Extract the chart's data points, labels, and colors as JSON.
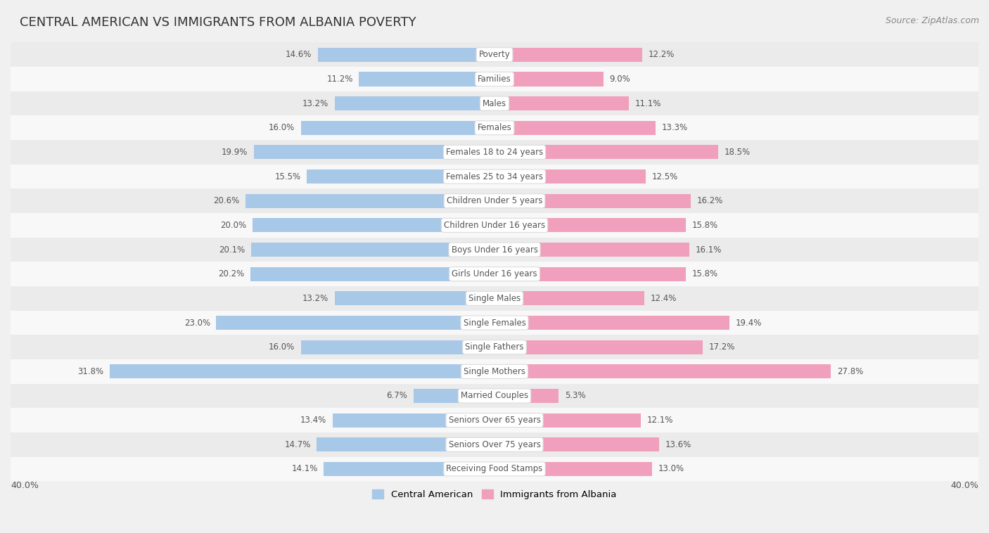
{
  "title": "CENTRAL AMERICAN VS IMMIGRANTS FROM ALBANIA POVERTY",
  "source": "Source: ZipAtlas.com",
  "categories": [
    "Poverty",
    "Families",
    "Males",
    "Females",
    "Females 18 to 24 years",
    "Females 25 to 34 years",
    "Children Under 5 years",
    "Children Under 16 years",
    "Boys Under 16 years",
    "Girls Under 16 years",
    "Single Males",
    "Single Females",
    "Single Fathers",
    "Single Mothers",
    "Married Couples",
    "Seniors Over 65 years",
    "Seniors Over 75 years",
    "Receiving Food Stamps"
  ],
  "central_american": [
    14.6,
    11.2,
    13.2,
    16.0,
    19.9,
    15.5,
    20.6,
    20.0,
    20.1,
    20.2,
    13.2,
    23.0,
    16.0,
    31.8,
    6.7,
    13.4,
    14.7,
    14.1
  ],
  "albania": [
    12.2,
    9.0,
    11.1,
    13.3,
    18.5,
    12.5,
    16.2,
    15.8,
    16.1,
    15.8,
    12.4,
    19.4,
    17.2,
    27.8,
    5.3,
    12.1,
    13.6,
    13.0
  ],
  "color_central": "#a8c8e8",
  "color_albania": "#f0a0bc",
  "bar_height": 0.58,
  "xlim": 40.0,
  "bg_outer": "#f0f0f0",
  "bg_inner": "#ffffff",
  "row_colors_odd": "#f8f8f8",
  "row_colors_even": "#ebebeb",
  "label_text_color": "#555555",
  "value_text_color": "#555555",
  "legend_central": "Central American",
  "legend_albania": "Immigrants from Albania",
  "title_fontsize": 13,
  "source_fontsize": 9,
  "label_fontsize": 8.5,
  "value_fontsize": 8.5,
  "axis_label_left": "40.0%",
  "axis_label_right": "40.0%"
}
